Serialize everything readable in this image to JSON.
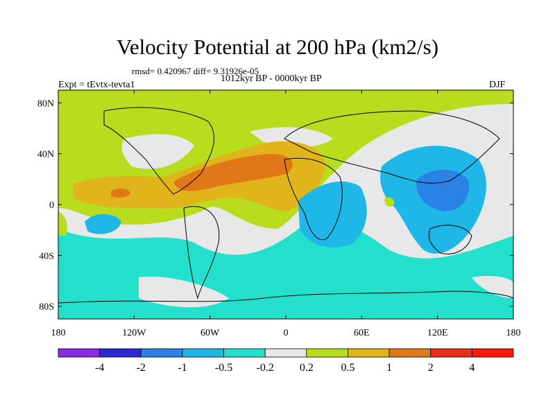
{
  "chart_data": {
    "type": "heatmap",
    "title": "Velocity Potential at 200 hPa (km2/s)",
    "stats_line": "rmsd= 0.420967  diff= 9.31926e-05",
    "period": "1012kyr BP - 0000kyr BP",
    "experiment": "Expt = tEvtx-tevta1",
    "season": "DJF",
    "projection": "cylindrical equidistant, global",
    "xlim": [
      -180,
      180
    ],
    "ylim": [
      -90,
      90
    ],
    "x_ticks": [
      {
        "value": -180,
        "label": "180"
      },
      {
        "value": -120,
        "label": "120W"
      },
      {
        "value": -60,
        "label": "60W"
      },
      {
        "value": 0,
        "label": "0"
      },
      {
        "value": 60,
        "label": "60E"
      },
      {
        "value": 120,
        "label": "120E"
      },
      {
        "value": 180,
        "label": "180"
      }
    ],
    "y_ticks": [
      {
        "value": 80,
        "label": "80N"
      },
      {
        "value": 40,
        "label": "40N"
      },
      {
        "value": 0,
        "label": "0"
      },
      {
        "value": -40,
        "label": "40S"
      },
      {
        "value": -80,
        "label": "80S"
      }
    ],
    "colorbar": {
      "levels": [
        "-4",
        "-2",
        "-1",
        "-0.5",
        "-0.2",
        "0.2",
        "0.5",
        "1",
        "2",
        "4"
      ],
      "colors": [
        "#8a2be2",
        "#2a2ad0",
        "#2a82e4",
        "#1fb6e8",
        "#22e0cc",
        "#e8e8e8",
        "#b8dc1e",
        "#e0b41a",
        "#e07818",
        "#e83018",
        "#ff1a0a"
      ]
    },
    "features": [
      {
        "name": "Asian monsoon / Maritime Continent minimum",
        "lon": 125,
        "lat": 12,
        "level_bin": "-2 to -1"
      },
      {
        "name": "East African / Indian Ocean minimum",
        "lon": 40,
        "lat": -10,
        "level_bin": "-1 to -0.5"
      },
      {
        "name": "Central Pacific minimum",
        "lon": -140,
        "lat": -20,
        "level_bin": "-1 to -0.5"
      },
      {
        "name": "Central Atlantic / Caribbean maximum",
        "lon": -40,
        "lat": 25,
        "level_bin": "1 to 2"
      },
      {
        "name": "Eastern Pacific maximum",
        "lon": -130,
        "lat": 10,
        "level_bin": "1 to 2"
      },
      {
        "name": "Northern mid-latitude positive band",
        "lon": -60,
        "lat": 60,
        "level_bin": "0.2 to 0.5"
      },
      {
        "name": "Southern Ocean negative band",
        "lon": 0,
        "lat": -65,
        "level_bin": "-0.5 to -0.2"
      }
    ]
  }
}
